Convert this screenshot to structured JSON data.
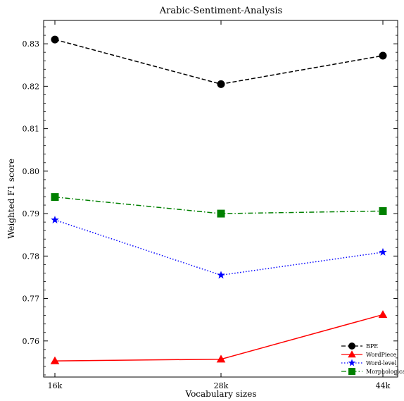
{
  "chart_data": {
    "type": "line",
    "title": "Arabic-Sentiment-Analysis",
    "xlabel": "Vocabulary sizes",
    "ylabel": "Weighted F1 score",
    "categories": [
      "16k",
      "28k",
      "44k"
    ],
    "ylim": [
      0.7515,
      0.8355
    ],
    "yticks": [
      0.76,
      0.77,
      0.78,
      0.79,
      0.8,
      0.81,
      0.82,
      0.83
    ],
    "ytick_labels": [
      "0.76",
      "0.77",
      "0.78",
      "0.79",
      "0.80",
      "0.81",
      "0.82",
      "0.83"
    ],
    "legend_position": "lower-right",
    "series": [
      {
        "name": "BPE",
        "values": [
          0.831,
          0.8205,
          0.8272
        ],
        "color": "#000000",
        "marker": "circle",
        "dash": "dashed"
      },
      {
        "name": "WordPiece",
        "values": [
          0.7553,
          0.7557,
          0.7662
        ],
        "color": "#ff0000",
        "marker": "triangle",
        "dash": "solid"
      },
      {
        "name": "Word-level",
        "values": [
          0.7885,
          0.7755,
          0.7809
        ],
        "color": "#0000ff",
        "marker": "star",
        "dash": "dotted"
      },
      {
        "name": "Morphological",
        "values": [
          0.7939,
          0.79,
          0.7906
        ],
        "color": "#008000",
        "marker": "square",
        "dash": "dashdot"
      }
    ]
  }
}
